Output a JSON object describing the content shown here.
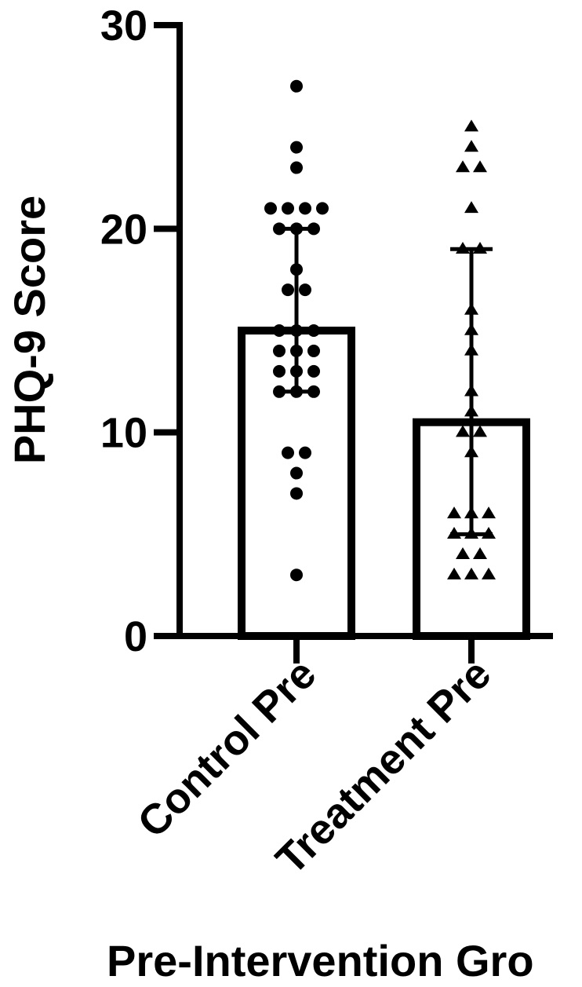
{
  "chart_data": {
    "type": "bar",
    "title": "",
    "xlabel": "Pre-Intervention Gro",
    "ylabel": "PHQ-9 Score",
    "ylim": [
      0,
      30
    ],
    "yticks": [
      0,
      10,
      20,
      30
    ],
    "grid": false,
    "categories": [
      "Control Pre",
      "Treatment Pre"
    ],
    "series": [
      {
        "category": "Control Pre",
        "mean": 15,
        "error_low": 12,
        "error_high": 20,
        "marker": "circle",
        "points": [
          27,
          24,
          23,
          21,
          21,
          21,
          21,
          20,
          20,
          20,
          18,
          17,
          17,
          15,
          15,
          15,
          14,
          14,
          14,
          13,
          13,
          13,
          12,
          12,
          12,
          9,
          9,
          8,
          7,
          3
        ]
      },
      {
        "category": "Treatment Pre",
        "mean": 10.5,
        "error_low": 5,
        "error_high": 19,
        "marker": "triangle",
        "points": [
          25,
          24,
          23,
          23,
          21,
          19,
          19,
          16,
          15,
          14,
          12,
          11,
          10,
          10,
          9,
          6,
          6,
          6,
          5,
          5,
          5,
          4,
          4,
          3,
          3,
          3
        ]
      }
    ]
  }
}
